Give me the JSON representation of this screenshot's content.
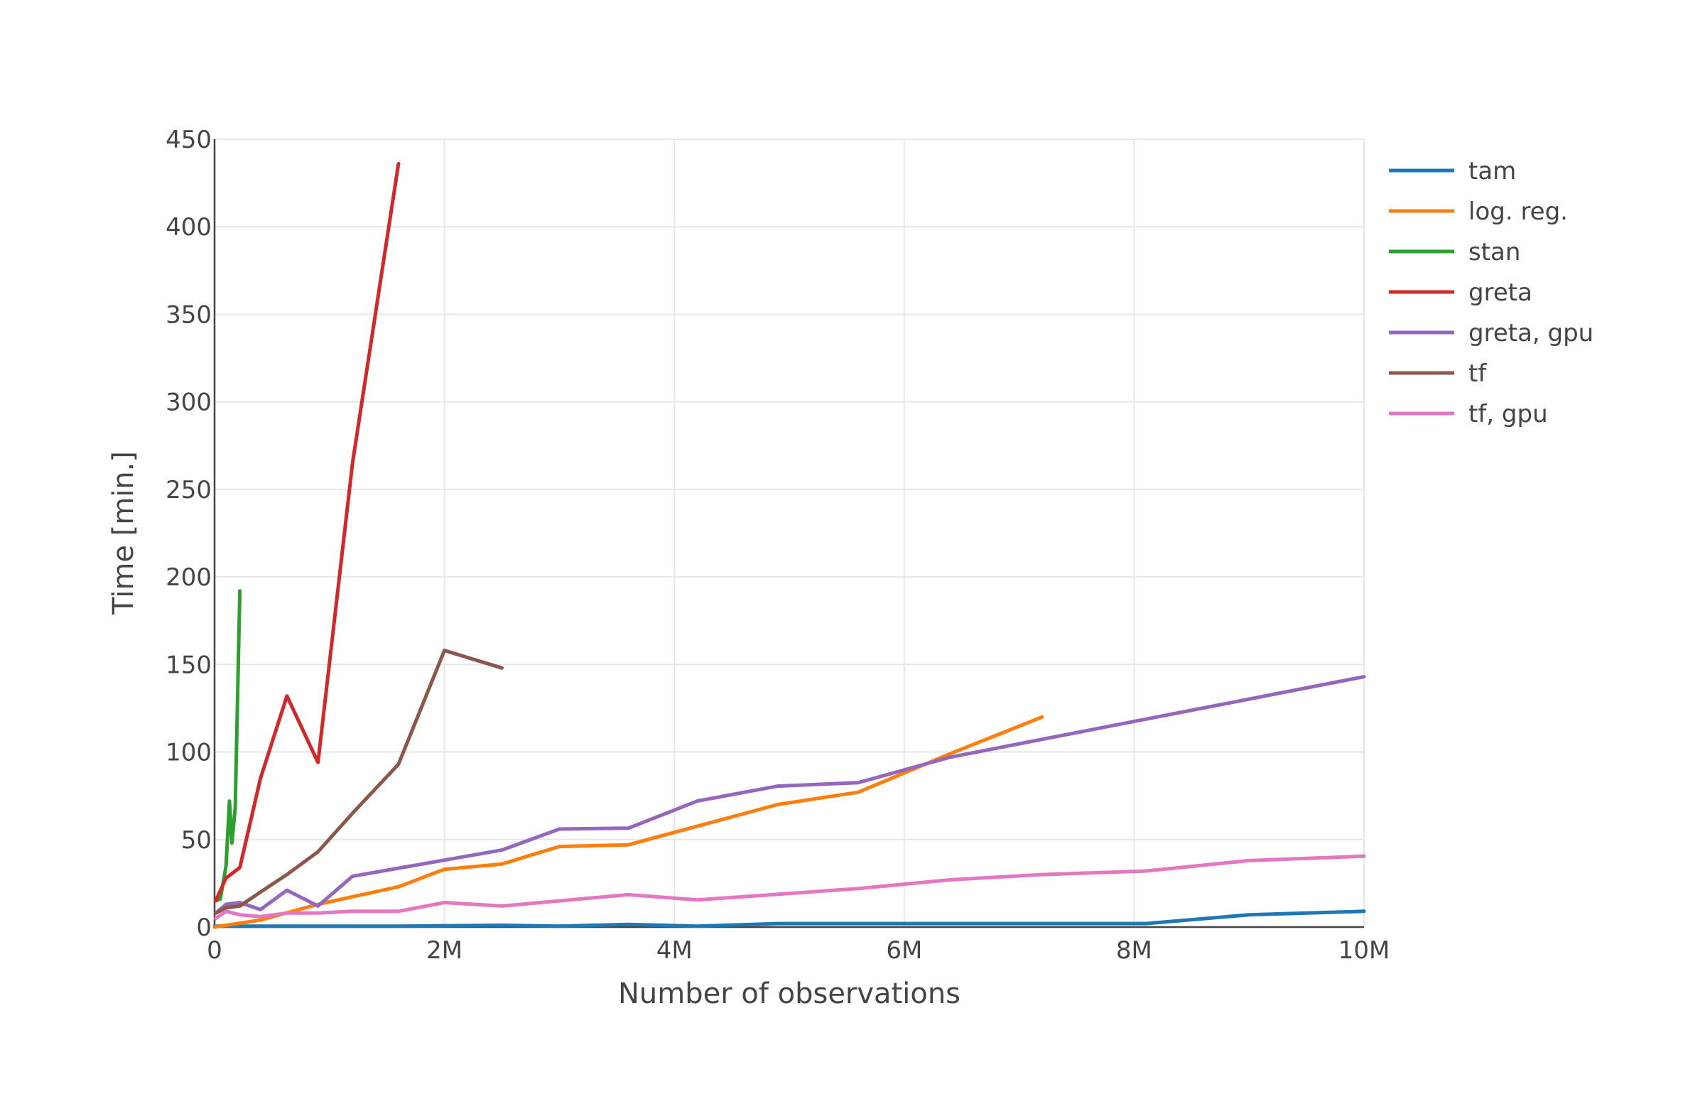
{
  "chart_data": {
    "type": "line",
    "title": "",
    "xlabel": "Number of observations",
    "ylabel": "Time [min.]",
    "xlim": [
      0,
      10000000
    ],
    "ylim": [
      0,
      450
    ],
    "x_ticks": [
      {
        "value": 0,
        "label": "0"
      },
      {
        "value": 2000000,
        "label": "2M"
      },
      {
        "value": 4000000,
        "label": "4M"
      },
      {
        "value": 6000000,
        "label": "6M"
      },
      {
        "value": 8000000,
        "label": "8M"
      },
      {
        "value": 10000000,
        "label": "10M"
      }
    ],
    "y_ticks": [
      {
        "value": 0,
        "label": "0"
      },
      {
        "value": 50,
        "label": "50"
      },
      {
        "value": 100,
        "label": "100"
      },
      {
        "value": 150,
        "label": "150"
      },
      {
        "value": 200,
        "label": "200"
      },
      {
        "value": 250,
        "label": "250"
      },
      {
        "value": 300,
        "label": "300"
      },
      {
        "value": 350,
        "label": "350"
      },
      {
        "value": 400,
        "label": "400"
      },
      {
        "value": 450,
        "label": "450"
      }
    ],
    "grid": true,
    "legend_position": "top-right",
    "series": [
      {
        "name": "tam",
        "color": "#1f77b4",
        "x": [
          0,
          100000,
          400000,
          900000,
          1600000,
          2500000,
          3000000,
          3600000,
          4200000,
          4900000,
          5600000,
          6400000,
          7200000,
          8100000,
          9000000,
          10000000
        ],
        "y": [
          0.5,
          0.5,
          0.5,
          0.5,
          0.5,
          1,
          0.5,
          1.5,
          0.5,
          2,
          2,
          2,
          2,
          2,
          7,
          9
        ]
      },
      {
        "name": "log. reg.",
        "color": "#ff7f0e",
        "x": [
          0,
          100000,
          400000,
          900000,
          1600000,
          2000000,
          2500000,
          3000000,
          3600000,
          4900000,
          5600000,
          6400000,
          7200000
        ],
        "y": [
          0,
          1,
          4,
          13,
          23,
          33,
          36,
          46,
          47,
          70,
          77,
          99,
          120
        ]
      },
      {
        "name": "stan",
        "color": "#2ca02c",
        "x": [
          10000,
          50000,
          100000,
          130000,
          150000,
          180000,
          220000
        ],
        "y": [
          15,
          16,
          35,
          72,
          48,
          68,
          192
        ]
      },
      {
        "name": "greta",
        "color": "#d62728",
        "x": [
          10000,
          100000,
          220000,
          400000,
          630000,
          900000,
          1200000,
          1600000
        ],
        "y": [
          15,
          28,
          34,
          85,
          132,
          94,
          265,
          436
        ]
      },
      {
        "name": "greta, gpu",
        "color": "#9467bd",
        "x": [
          10000,
          100000,
          220000,
          400000,
          630000,
          900000,
          1200000,
          2500000,
          3000000,
          3600000,
          4200000,
          4900000,
          5600000,
          6400000,
          10000000
        ],
        "y": [
          8,
          13,
          14,
          10,
          21,
          12,
          29,
          44,
          56,
          56.5,
          72,
          80.5,
          82.5,
          97,
          143
        ]
      },
      {
        "name": "tf",
        "color": "#8c564b",
        "x": [
          10000,
          100000,
          220000,
          400000,
          630000,
          900000,
          1200000,
          1600000,
          2000000,
          2500000
        ],
        "y": [
          8,
          11,
          12,
          20,
          30,
          43,
          65,
          93,
          158,
          148
        ]
      },
      {
        "name": "tf, gpu",
        "color": "#e377c2",
        "x": [
          10000,
          100000,
          220000,
          400000,
          630000,
          900000,
          1200000,
          1600000,
          2000000,
          2500000,
          3600000,
          4200000,
          5600000,
          6400000,
          7200000,
          8100000,
          9000000,
          10000000
        ],
        "y": [
          5,
          9,
          7,
          6,
          8,
          8,
          9,
          9,
          14,
          12,
          18.5,
          15.5,
          22,
          27,
          30,
          32,
          38,
          40.5
        ]
      }
    ]
  }
}
